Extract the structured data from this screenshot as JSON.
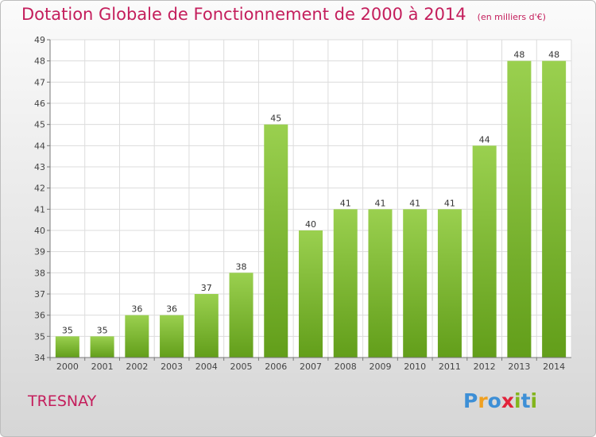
{
  "title": "Dotation Globale de Fonctionnement de 2000 à 2014",
  "unit_note": "(en milliers d'€)",
  "commune": "TRESNAY",
  "logo": {
    "text": "Proxiti",
    "letters": [
      {
        "ch": "P",
        "color": "#3d8fd6"
      },
      {
        "ch": "r",
        "color": "#f0a020"
      },
      {
        "ch": "o",
        "color": "#3d8fd6"
      },
      {
        "ch": "x",
        "color": "#e2233b"
      },
      {
        "ch": "i",
        "color": "#83b51d"
      },
      {
        "ch": "t",
        "color": "#3d8fd6"
      },
      {
        "ch": "i",
        "color": "#83b51d"
      }
    ]
  },
  "colors": {
    "title": "#c41e5c",
    "bar_top": "#9ad04f",
    "bar_bottom": "#629e1a",
    "grid": "#dcdcdc",
    "axis": "#777777"
  },
  "chart_data": {
    "type": "bar",
    "categories": [
      "2000",
      "2001",
      "2002",
      "2003",
      "2004",
      "2005",
      "2006",
      "2007",
      "2008",
      "2009",
      "2010",
      "2011",
      "2012",
      "2013",
      "2014"
    ],
    "values": [
      35,
      35,
      36,
      36,
      37,
      38,
      45,
      40,
      41,
      41,
      41,
      41,
      44,
      48,
      48
    ],
    "ylim": [
      34,
      49
    ],
    "yticks": [
      34,
      35,
      36,
      37,
      38,
      39,
      40,
      41,
      42,
      43,
      44,
      45,
      46,
      47,
      48,
      49
    ],
    "grid": true,
    "data_labels": true
  }
}
